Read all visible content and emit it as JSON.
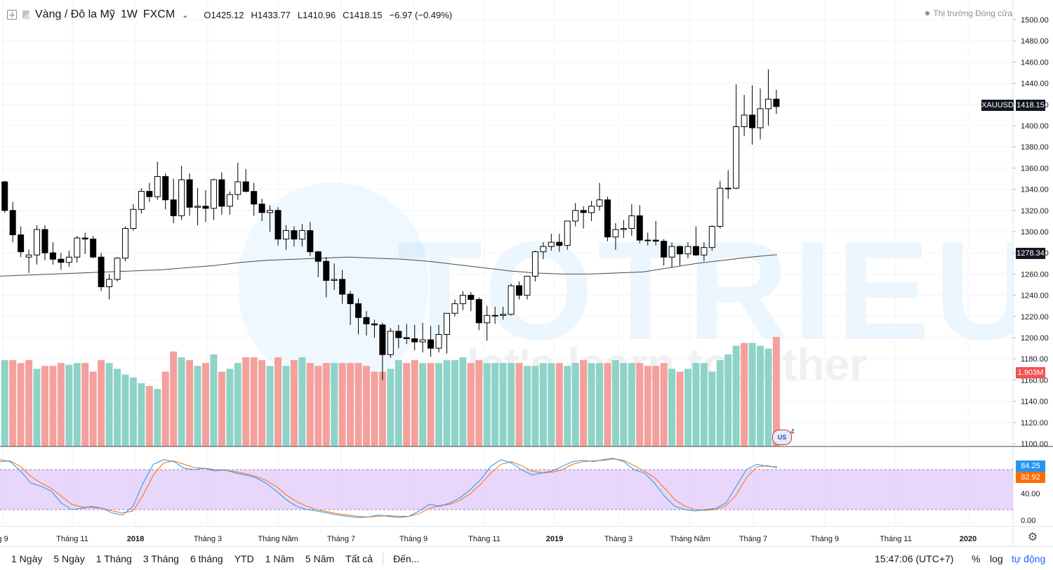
{
  "header": {
    "symbol_title": "Vàng / Đô la Mỹ",
    "interval": "1W",
    "exchange": "FXCM",
    "ohlc": [
      {
        "key": "O",
        "value": "1425.12"
      },
      {
        "key": "H",
        "value": "1433.77"
      },
      {
        "key": "L",
        "value": "1410.96"
      },
      {
        "key": "C",
        "value": "1418.15"
      }
    ],
    "change": "−6.97 (−0.49%)",
    "market_status": "Thị trường Đóng cửa"
  },
  "price_axis": {
    "ticks": [
      "1500.00",
      "1480.00",
      "1460.00",
      "1440.00",
      "1420.00",
      "1400.00",
      "1380.00",
      "1360.00",
      "1340.00",
      "1320.00",
      "1300.00",
      "1280.00",
      "1260.00",
      "1240.00",
      "1220.00",
      "1200.00",
      "1180.00",
      "1160.00",
      "1140.00",
      "1120.00",
      "1100.00"
    ],
    "last_price_label": "1418.15",
    "symbol_tag": "XAUUSD",
    "ma_label": "1278.34",
    "volume_label": "1.903M"
  },
  "stoch_axis": {
    "ticks": [
      "40.00",
      "0.00"
    ],
    "k_label": "84.25",
    "d_label": "82.92"
  },
  "time_axis": {
    "labels": [
      "g 9",
      "Tháng 11",
      "2018",
      "Tháng 3",
      "Tháng Năm",
      "Tháng 7",
      "Tháng 9",
      "Tháng 11",
      "2019",
      "Tháng 3",
      "Tháng Năm",
      "Tháng 7",
      "Tháng 9",
      "Tháng 11",
      "2020"
    ]
  },
  "events_badge": {
    "count": "4",
    "icon": "us-flag-events-icon"
  },
  "watermark": {
    "brand": "TOTRIEU",
    "slogan": "let's learn together"
  },
  "bottom_bar": {
    "ranges": [
      "1 Ngày",
      "5 Ngày",
      "1 Tháng",
      "3 Tháng",
      "6 tháng",
      "YTD",
      "1 Năm",
      "5 Năm",
      "Tất cả"
    ],
    "goto": "Đến...",
    "clock": "15:47:06 (UTC+7)",
    "percent": "%",
    "log": "log",
    "auto": "tự động"
  },
  "colors": {
    "up_candle": "#ffffff",
    "down_candle": "#000000",
    "up_volume": "#8fd3c8",
    "down_volume": "#f4a09c",
    "stoch_k": "#2196f3",
    "stoch_d": "#ff6d00",
    "stoch_band": "#e1c8fa",
    "ma_line": "#4a4a4a"
  },
  "chart_data": {
    "type": "candlestick",
    "interval": "1W",
    "y_price_range": [
      1100,
      1500
    ],
    "candles": [
      {
        "o": 1347,
        "h": 1348,
        "l": 1318,
        "c": 1320
      },
      {
        "o": 1320,
        "h": 1328,
        "l": 1290,
        "c": 1297
      },
      {
        "o": 1297,
        "h": 1305,
        "l": 1276,
        "c": 1281
      },
      {
        "o": 1276,
        "h": 1283,
        "l": 1261,
        "c": 1278
      },
      {
        "o": 1278,
        "h": 1306,
        "l": 1269,
        "c": 1302
      },
      {
        "o": 1302,
        "h": 1306,
        "l": 1273,
        "c": 1280
      },
      {
        "o": 1280,
        "h": 1290,
        "l": 1269,
        "c": 1274
      },
      {
        "o": 1274,
        "h": 1280,
        "l": 1264,
        "c": 1271
      },
      {
        "o": 1271,
        "h": 1282,
        "l": 1267,
        "c": 1276
      },
      {
        "o": 1276,
        "h": 1296,
        "l": 1271,
        "c": 1294
      },
      {
        "o": 1294,
        "h": 1299,
        "l": 1279,
        "c": 1293
      },
      {
        "o": 1293,
        "h": 1296,
        "l": 1275,
        "c": 1276
      },
      {
        "o": 1276,
        "h": 1280,
        "l": 1244,
        "c": 1248
      },
      {
        "o": 1248,
        "h": 1260,
        "l": 1236,
        "c": 1255
      },
      {
        "o": 1255,
        "h": 1276,
        "l": 1253,
        "c": 1275
      },
      {
        "o": 1275,
        "h": 1305,
        "l": 1272,
        "c": 1303
      },
      {
        "o": 1303,
        "h": 1326,
        "l": 1301,
        "c": 1321
      },
      {
        "o": 1321,
        "h": 1341,
        "l": 1317,
        "c": 1338
      },
      {
        "o": 1338,
        "h": 1346,
        "l": 1328,
        "c": 1333
      },
      {
        "o": 1333,
        "h": 1366,
        "l": 1330,
        "c": 1352
      },
      {
        "o": 1352,
        "h": 1355,
        "l": 1321,
        "c": 1330
      },
      {
        "o": 1330,
        "h": 1350,
        "l": 1308,
        "c": 1315
      },
      {
        "o": 1315,
        "h": 1362,
        "l": 1311,
        "c": 1349
      },
      {
        "o": 1349,
        "h": 1355,
        "l": 1315,
        "c": 1323
      },
      {
        "o": 1323,
        "h": 1341,
        "l": 1306,
        "c": 1324
      },
      {
        "o": 1324,
        "h": 1339,
        "l": 1309,
        "c": 1322
      },
      {
        "o": 1322,
        "h": 1350,
        "l": 1311,
        "c": 1349
      },
      {
        "o": 1349,
        "h": 1356,
        "l": 1316,
        "c": 1324
      },
      {
        "o": 1324,
        "h": 1338,
        "l": 1316,
        "c": 1335
      },
      {
        "o": 1335,
        "h": 1365,
        "l": 1330,
        "c": 1347
      },
      {
        "o": 1347,
        "h": 1359,
        "l": 1337,
        "c": 1338
      },
      {
        "o": 1338,
        "h": 1346,
        "l": 1315,
        "c": 1326
      },
      {
        "o": 1326,
        "h": 1331,
        "l": 1310,
        "c": 1318
      },
      {
        "o": 1318,
        "h": 1325,
        "l": 1300,
        "c": 1320
      },
      {
        "o": 1320,
        "h": 1323,
        "l": 1287,
        "c": 1293
      },
      {
        "o": 1293,
        "h": 1306,
        "l": 1283,
        "c": 1301
      },
      {
        "o": 1301,
        "h": 1305,
        "l": 1286,
        "c": 1293
      },
      {
        "o": 1293,
        "h": 1307,
        "l": 1286,
        "c": 1301
      },
      {
        "o": 1301,
        "h": 1309,
        "l": 1277,
        "c": 1281
      },
      {
        "o": 1281,
        "h": 1282,
        "l": 1257,
        "c": 1272
      },
      {
        "o": 1272,
        "h": 1276,
        "l": 1238,
        "c": 1254
      },
      {
        "o": 1254,
        "h": 1270,
        "l": 1245,
        "c": 1255
      },
      {
        "o": 1255,
        "h": 1264,
        "l": 1232,
        "c": 1241
      },
      {
        "o": 1241,
        "h": 1244,
        "l": 1212,
        "c": 1232
      },
      {
        "o": 1232,
        "h": 1237,
        "l": 1203,
        "c": 1219
      },
      {
        "o": 1219,
        "h": 1225,
        "l": 1202,
        "c": 1213
      },
      {
        "o": 1213,
        "h": 1217,
        "l": 1200,
        "c": 1212
      },
      {
        "o": 1212,
        "h": 1214,
        "l": 1160,
        "c": 1184
      },
      {
        "o": 1184,
        "h": 1209,
        "l": 1181,
        "c": 1206
      },
      {
        "o": 1206,
        "h": 1212,
        "l": 1190,
        "c": 1200
      },
      {
        "o": 1200,
        "h": 1213,
        "l": 1194,
        "c": 1199
      },
      {
        "o": 1199,
        "h": 1212,
        "l": 1188,
        "c": 1196
      },
      {
        "o": 1196,
        "h": 1214,
        "l": 1186,
        "c": 1198
      },
      {
        "o": 1198,
        "h": 1211,
        "l": 1182,
        "c": 1190
      },
      {
        "o": 1190,
        "h": 1212,
        "l": 1186,
        "c": 1203
      },
      {
        "o": 1203,
        "h": 1223,
        "l": 1185,
        "c": 1223
      },
      {
        "o": 1223,
        "h": 1236,
        "l": 1220,
        "c": 1232
      },
      {
        "o": 1232,
        "h": 1244,
        "l": 1226,
        "c": 1240
      },
      {
        "o": 1240,
        "h": 1243,
        "l": 1225,
        "c": 1236
      },
      {
        "o": 1236,
        "h": 1238,
        "l": 1207,
        "c": 1214
      },
      {
        "o": 1214,
        "h": 1230,
        "l": 1197,
        "c": 1221
      },
      {
        "o": 1221,
        "h": 1229,
        "l": 1213,
        "c": 1221
      },
      {
        "o": 1221,
        "h": 1229,
        "l": 1217,
        "c": 1222
      },
      {
        "o": 1222,
        "h": 1251,
        "l": 1221,
        "c": 1249
      },
      {
        "o": 1249,
        "h": 1253,
        "l": 1236,
        "c": 1240
      },
      {
        "o": 1240,
        "h": 1258,
        "l": 1236,
        "c": 1258
      },
      {
        "o": 1258,
        "h": 1282,
        "l": 1253,
        "c": 1281
      },
      {
        "o": 1281,
        "h": 1290,
        "l": 1274,
        "c": 1286
      },
      {
        "o": 1286,
        "h": 1298,
        "l": 1282,
        "c": 1290
      },
      {
        "o": 1290,
        "h": 1298,
        "l": 1281,
        "c": 1287
      },
      {
        "o": 1287,
        "h": 1310,
        "l": 1283,
        "c": 1310
      },
      {
        "o": 1310,
        "h": 1327,
        "l": 1305,
        "c": 1320
      },
      {
        "o": 1320,
        "h": 1324,
        "l": 1303,
        "c": 1318
      },
      {
        "o": 1318,
        "h": 1329,
        "l": 1310,
        "c": 1324
      },
      {
        "o": 1324,
        "h": 1346,
        "l": 1320,
        "c": 1330
      },
      {
        "o": 1330,
        "h": 1333,
        "l": 1291,
        "c": 1295
      },
      {
        "o": 1295,
        "h": 1308,
        "l": 1283,
        "c": 1302
      },
      {
        "o": 1302,
        "h": 1311,
        "l": 1294,
        "c": 1303
      },
      {
        "o": 1303,
        "h": 1326,
        "l": 1296,
        "c": 1315
      },
      {
        "o": 1315,
        "h": 1325,
        "l": 1289,
        "c": 1292
      },
      {
        "o": 1292,
        "h": 1299,
        "l": 1287,
        "c": 1292
      },
      {
        "o": 1292,
        "h": 1310,
        "l": 1287,
        "c": 1291
      },
      {
        "o": 1291,
        "h": 1293,
        "l": 1268,
        "c": 1276
      },
      {
        "o": 1276,
        "h": 1290,
        "l": 1266,
        "c": 1286
      },
      {
        "o": 1286,
        "h": 1287,
        "l": 1268,
        "c": 1279
      },
      {
        "o": 1279,
        "h": 1290,
        "l": 1275,
        "c": 1286
      },
      {
        "o": 1286,
        "h": 1305,
        "l": 1277,
        "c": 1278
      },
      {
        "o": 1278,
        "h": 1290,
        "l": 1272,
        "c": 1285
      },
      {
        "o": 1285,
        "h": 1306,
        "l": 1282,
        "c": 1305
      },
      {
        "o": 1305,
        "h": 1348,
        "l": 1303,
        "c": 1341
      },
      {
        "o": 1341,
        "h": 1358,
        "l": 1331,
        "c": 1341
      },
      {
        "o": 1341,
        "h": 1439,
        "l": 1340,
        "c": 1399
      },
      {
        "o": 1399,
        "h": 1429,
        "l": 1390,
        "c": 1410
      },
      {
        "o": 1410,
        "h": 1438,
        "l": 1382,
        "c": 1398
      },
      {
        "o": 1398,
        "h": 1435,
        "l": 1387,
        "c": 1416
      },
      {
        "o": 1416,
        "h": 1453,
        "l": 1400,
        "c": 1425
      },
      {
        "o": 1425,
        "h": 1434,
        "l": 1411,
        "c": 1418
      }
    ],
    "moving_average": {
      "label": "1278.34",
      "values": [
        1258,
        1259,
        1260,
        1261,
        1262,
        1263,
        1264,
        1266,
        1268,
        1271,
        1273,
        1274,
        1275,
        1276,
        1275,
        1274,
        1272,
        1269,
        1266,
        1263,
        1261,
        1260,
        1260,
        1261,
        1262,
        1266,
        1270,
        1273,
        1276,
        1278.34
      ]
    },
    "volume": {
      "label": "1.903M",
      "unit": "relative",
      "values": [
        1.5,
        1.5,
        1.45,
        1.5,
        1.35,
        1.4,
        1.4,
        1.45,
        1.42,
        1.45,
        1.45,
        1.3,
        1.5,
        1.45,
        1.35,
        1.25,
        1.2,
        1.1,
        1.05,
        1.0,
        1.3,
        1.65,
        1.55,
        1.5,
        1.4,
        1.45,
        1.6,
        1.3,
        1.35,
        1.45,
        1.55,
        1.55,
        1.5,
        1.4,
        1.55,
        1.4,
        1.5,
        1.55,
        1.45,
        1.4,
        1.45,
        1.45,
        1.45,
        1.45,
        1.45,
        1.4,
        1.3,
        1.3,
        1.35,
        1.5,
        1.45,
        1.5,
        1.45,
        1.45,
        1.45,
        1.5,
        1.5,
        1.55,
        1.45,
        1.5,
        1.45,
        1.45,
        1.45,
        1.45,
        1.45,
        1.4,
        1.4,
        1.45,
        1.45,
        1.45,
        1.4,
        1.45,
        1.5,
        1.45,
        1.45,
        1.45,
        1.5,
        1.45,
        1.45,
        1.45,
        1.4,
        1.4,
        1.45,
        1.35,
        1.3,
        1.35,
        1.45,
        1.45,
        1.3,
        1.5,
        1.6,
        1.75,
        1.8,
        1.8,
        1.75,
        1.7,
        1.903
      ],
      "up_down": [
        "u",
        "d",
        "d",
        "d",
        "u",
        "d",
        "d",
        "d",
        "u",
        "u",
        "d",
        "d",
        "d",
        "u",
        "u",
        "u",
        "u",
        "u",
        "d",
        "u",
        "d",
        "d",
        "u",
        "d",
        "u",
        "d",
        "u",
        "d",
        "u",
        "u",
        "d",
        "d",
        "d",
        "u",
        "d",
        "u",
        "d",
        "u",
        "d",
        "d",
        "d",
        "u",
        "d",
        "d",
        "d",
        "d",
        "d",
        "d",
        "u",
        "u",
        "d",
        "d",
        "u",
        "d",
        "u",
        "u",
        "u",
        "u",
        "d",
        "d",
        "u",
        "u",
        "u",
        "u",
        "d",
        "u",
        "u",
        "u",
        "u",
        "d",
        "u",
        "u",
        "d",
        "u",
        "u",
        "d",
        "u",
        "u",
        "u",
        "d",
        "d",
        "d",
        "d",
        "u",
        "d",
        "u",
        "u",
        "u",
        "u",
        "u",
        "u",
        "u",
        "d",
        "u",
        "u",
        "u",
        "d"
      ]
    },
    "stochastic": {
      "range": [
        0,
        100
      ],
      "band": [
        20,
        80
      ],
      "k_label": "84.25",
      "d_label": "82.92",
      "k": [
        95,
        92,
        78,
        60,
        55,
        48,
        30,
        20,
        22,
        25,
        22,
        15,
        12,
        25,
        60,
        88,
        95,
        92,
        82,
        80,
        82,
        78,
        80,
        75,
        72,
        68,
        60,
        48,
        35,
        25,
        20,
        18,
        15,
        12,
        10,
        8,
        9,
        12,
        10,
        8,
        10,
        18,
        28,
        25,
        30,
        38,
        50,
        65,
        85,
        95,
        90,
        80,
        72,
        75,
        78,
        85,
        92,
        94,
        92,
        95,
        97,
        92,
        80,
        75,
        60,
        40,
        25,
        20,
        18,
        20,
        22,
        30,
        55,
        80,
        88,
        85,
        84.25
      ],
      "d": [
        92,
        93,
        85,
        70,
        60,
        52,
        40,
        28,
        24,
        23,
        22,
        18,
        15,
        18,
        42,
        72,
        90,
        93,
        88,
        83,
        82,
        80,
        79,
        77,
        74,
        70,
        64,
        55,
        42,
        32,
        25,
        20,
        17,
        14,
        12,
        10,
        9,
        10,
        11,
        10,
        10,
        14,
        22,
        26,
        28,
        34,
        44,
        58,
        75,
        88,
        92,
        86,
        78,
        75,
        76,
        80,
        88,
        92,
        93,
        94,
        96,
        94,
        86,
        78,
        68,
        52,
        35,
        25,
        20,
        19,
        20,
        26,
        42,
        68,
        84,
        86,
        82.92
      ]
    }
  }
}
